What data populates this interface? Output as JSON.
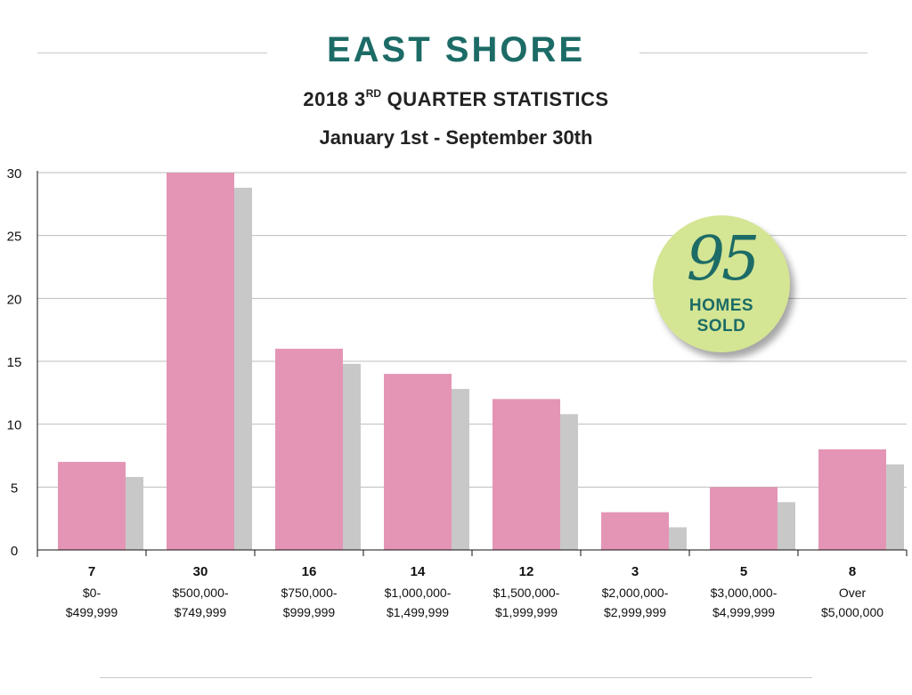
{
  "header": {
    "title": "EAST SHORE",
    "subtitle_main": "2018 3",
    "subtitle_sup": "RD",
    "subtitle_rest": " QUARTER STATISTICS",
    "dates": "January 1st - September 30th"
  },
  "badge": {
    "number": "95",
    "line1": "HOMES",
    "line2": "SOLD"
  },
  "colors": {
    "bar": "#e495b5",
    "shadow": "#c8c8c8",
    "title": "#1c6b66",
    "badge_bg": "#d4e594",
    "grid": "#bdbdbd"
  },
  "chart_data": {
    "type": "bar",
    "title": "",
    "xlabel": "",
    "ylabel": "",
    "ylim": [
      0,
      30
    ],
    "yticks": [
      0,
      5,
      10,
      15,
      20,
      25,
      30
    ],
    "grid": true,
    "categories": [
      {
        "value_label": "7",
        "line1": "$0-",
        "line2": "$499,999"
      },
      {
        "value_label": "30",
        "line1": "$500,000-",
        "line2": "$749,999"
      },
      {
        "value_label": "16",
        "line1": "$750,000-",
        "line2": "$999,999"
      },
      {
        "value_label": "14",
        "line1": "$1,000,000-",
        "line2": "$1,499,999"
      },
      {
        "value_label": "12",
        "line1": "$1,500,000-",
        "line2": "$1,999,999"
      },
      {
        "value_label": "3",
        "line1": "$2,000,000-",
        "line2": "$2,999,999"
      },
      {
        "value_label": "5",
        "line1": "$3,000,000-",
        "line2": "$4,999,999"
      },
      {
        "value_label": "8",
        "line1": "Over",
        "line2": "$5,000,000"
      }
    ],
    "values": [
      7,
      30,
      16,
      14,
      12,
      3,
      5,
      8
    ]
  }
}
